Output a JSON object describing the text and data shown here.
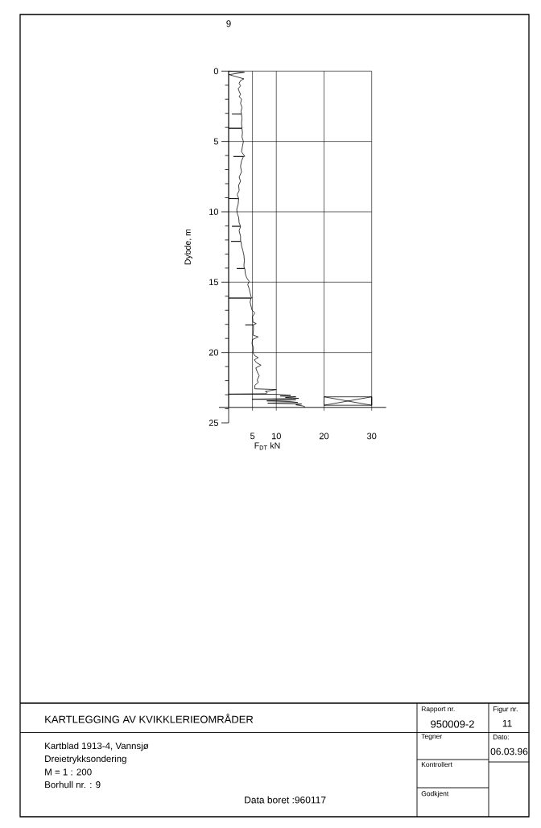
{
  "chart_data": {
    "type": "line",
    "title": "9",
    "xlabel": "F$_{DT}$ kN",
    "ylabel": "Dybde, m",
    "xlim": [
      0,
      30
    ],
    "xticks": [
      5,
      10,
      20,
      30
    ],
    "ylim": [
      25,
      0
    ],
    "yticks": [
      0,
      {
        "value": 1,
        "label": null
      },
      {
        "value": 2,
        "label": null
      },
      {
        "value": 3,
        "label": null
      },
      {
        "value": 4,
        "label": null
      },
      5,
      {
        "value": 6,
        "label": null
      },
      {
        "value": 7,
        "label": null
      },
      {
        "value": 8,
        "label": null
      },
      {
        "value": 9,
        "label": null
      },
      10,
      {
        "value": 11,
        "label": null
      },
      {
        "value": 12,
        "label": null
      },
      {
        "value": 13,
        "label": null
      },
      {
        "value": 14,
        "label": null
      },
      15,
      {
        "value": 16,
        "label": null
      },
      {
        "value": 17,
        "label": null
      },
      {
        "value": 18,
        "label": null
      },
      {
        "value": 19,
        "label": null
      },
      20,
      {
        "value": 21,
        "label": null
      },
      {
        "value": 22,
        "label": null
      },
      {
        "value": 23,
        "label": null
      },
      {
        "value": 24,
        "label": null
      },
      25
    ],
    "grid": true,
    "series": [
      {
        "color": "#000000",
        "x": [
          0,
          3.3,
          0.1,
          3.2,
          2.5,
          2.2,
          2.5,
          2.0,
          2.2,
          2.5,
          2.2,
          2.7,
          2.5,
          2.8,
          2.6,
          2.7,
          0.7,
          2.7,
          2.8,
          2.7,
          2.8,
          0,
          2.8,
          2.9,
          2.8,
          3.1,
          2.9,
          2.7,
          3.4,
          1.0,
          3.1,
          2.7,
          2.5,
          2.7,
          2.2,
          2.5,
          2.1,
          2.2,
          1.8,
          2.1,
          0,
          2.1,
          2.0,
          1.7,
          1.8,
          2.1,
          2.2,
          2.5,
          0.7,
          2.5,
          2.2,
          2.5,
          2.5,
          0.5,
          2.6,
          2.7,
          3.0,
          3.2,
          3.3,
          3.2,
          3.3,
          1.7,
          3.4,
          3.5,
          3.8,
          4.3,
          4.0,
          4.3,
          4.5,
          4.7,
          4.9,
          0,
          4.7,
          4.5,
          4.7,
          4.9,
          5.5,
          5.0,
          5.1,
          5.8,
          5.2,
          3.5,
          5.2,
          5.2,
          5.1,
          6.2,
          5.0,
          4.9,
          5.2,
          5.1,
          5.5,
          6.2,
          5.4,
          5.8,
          6.8,
          5.7,
          6.0,
          6.4,
          6.0,
          6.2,
          5.5,
          5.5,
          10.0,
          7.7,
          8.1,
          7.9,
          0,
          10,
          13.0,
          10.8,
          14.1,
          11.9,
          14.7,
          4.9,
          14.1,
          8.0,
          13.0,
          14.5,
          8.2,
          15.3,
          14.1,
          15.6,
          16.0,
          15.8
        ],
        "values": [
          0,
          0.08,
          0.25,
          0.55,
          0.67,
          0.86,
          1.05,
          1.24,
          1.43,
          1.66,
          1.81,
          2.0,
          2.29,
          2.58,
          2.86,
          3.04,
          3.05,
          3.06,
          3.34,
          3.72,
          4.05,
          4.06,
          4.07,
          4.39,
          4.68,
          5.0,
          5.34,
          5.73,
          6.06,
          6.07,
          6.08,
          6.39,
          6.77,
          7.16,
          7.54,
          7.82,
          8.11,
          8.49,
          8.78,
          9.05,
          9.06,
          9.07,
          9.45,
          9.83,
          10.11,
          10.4,
          10.78,
          11.02,
          11.03,
          11.04,
          11.35,
          11.74,
          12.09,
          12.1,
          12.11,
          12.41,
          12.79,
          13.08,
          13.46,
          13.85,
          14.02,
          14.03,
          14.04,
          14.41,
          14.7,
          14.94,
          15.17,
          15.46,
          15.75,
          16.03,
          16.12,
          16.13,
          16.14,
          16.41,
          16.7,
          16.99,
          17.18,
          17.46,
          17.84,
          17.94,
          18.03,
          18.04,
          18.05,
          18.42,
          18.76,
          18.89,
          19.08,
          19.37,
          19.66,
          20.0,
          20.23,
          20.36,
          20.52,
          20.71,
          20.9,
          21.09,
          21.38,
          21.66,
          21.95,
          22.14,
          22.33,
          22.58,
          22.63,
          22.77,
          22.84,
          22.93,
          22.96,
          22.97,
          23.04,
          23.09,
          23.15,
          23.2,
          23.26,
          23.32,
          23.36,
          23.44,
          23.49,
          23.55,
          23.6,
          23.66,
          23.72,
          23.8,
          23.87,
          23.9
        ]
      },
      {
        "color": "#000000",
        "x": [
          20,
          30,
          30,
          20,
          20,
          30,
          30,
          20
        ],
        "values": [
          23.15,
          23.15,
          23.75,
          23.75,
          23.15,
          23.75,
          23.15,
          23.75
        ]
      }
    ],
    "ref_lines": [
      {
        "axis": "y",
        "value": 23.9
      }
    ],
    "annotations": [
      "KARTLEGGING AV KVIKKLERIEOMRÅDER",
      "Kartblad 1913-4, Vannsjø",
      "Dreietrykksondering",
      "M = 1 : 200",
      "Borhull nr. : 9",
      "Data boret :960117",
      "Rapport nr.",
      "950009-2",
      "Figur nr.",
      "11",
      "Tegner",
      "Dato:",
      "06.03.96",
      "Kontrollert",
      "Godkjent"
    ]
  }
}
